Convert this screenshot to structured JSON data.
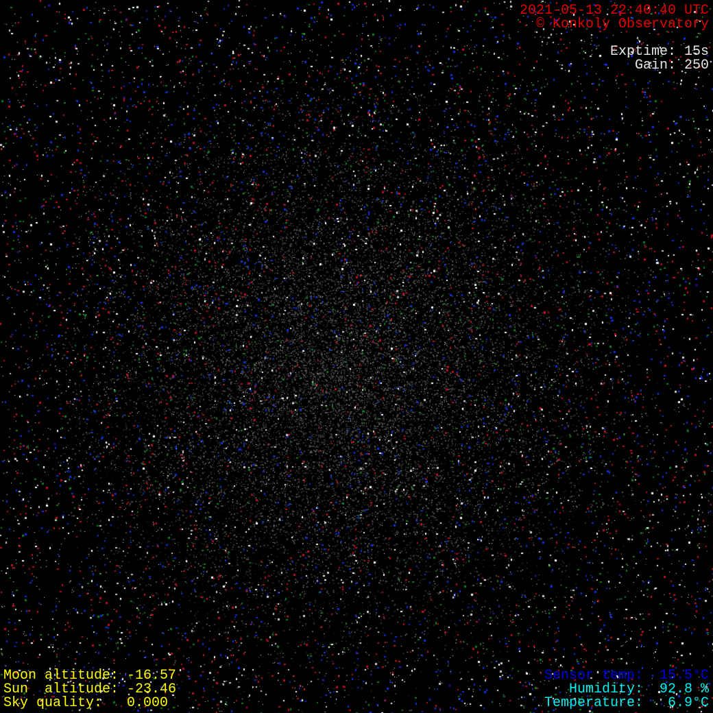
{
  "header": {
    "timestamp": "2021-05-13 22:40:40 UTC",
    "copyright": "© Konkoly Observatory"
  },
  "camera": {
    "exptime": "Exptime: 15s",
    "gain": "Gain: 250"
  },
  "astro": {
    "moon_altitude": "Moon altitude: -16.57",
    "sun_altitude": "Sun  altitude: -23.46",
    "sky_quality": "Sky quality:   0.000"
  },
  "weather": {
    "sensor_temp": "Sensor temp:  15.5°C",
    "humidity": "Humidity:  92.8 %",
    "temperature": "Temperature:   6.9°C"
  },
  "colors": {
    "header": "#e00000",
    "camera": "#e8e8e8",
    "astro": "#ffff00",
    "sensor": "#0000e0",
    "weather": "#00f0f0"
  }
}
